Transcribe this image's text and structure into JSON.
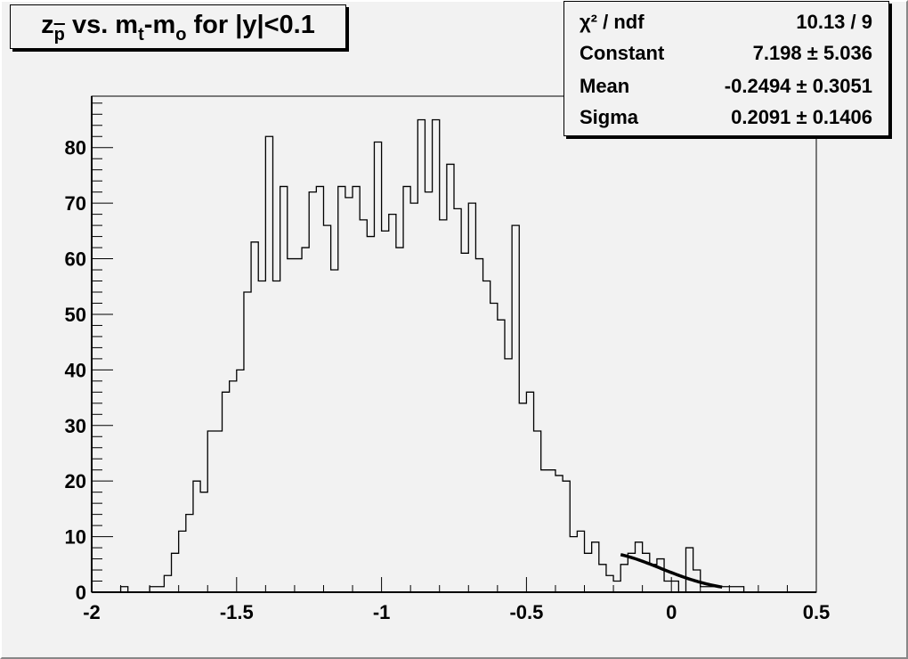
{
  "title_parts": [
    "z",
    "p",
    "vs. m",
    "t",
    "-m",
    "o",
    "for |y|<0.1"
  ],
  "stats": [
    {
      "label": "χ² / ndf",
      "value": "10.13 / 9"
    },
    {
      "label": "Constant",
      "value": "7.198 ± 5.036"
    },
    {
      "label": "Mean",
      "value": "-0.2494 ± 0.3051"
    },
    {
      "label": "Sigma",
      "value": "0.2091 ± 0.1406"
    }
  ],
  "chart_data": {
    "type": "bar",
    "style": "step histogram",
    "xlim": [
      -2,
      0.5
    ],
    "ylim": [
      0,
      89.25
    ],
    "bin_width": 0.025,
    "x_ticks": [
      "-2",
      "-1.5",
      "-1",
      "-0.5",
      "0",
      "0.5"
    ],
    "y_ticks": [
      "0",
      "10",
      "20",
      "30",
      "40",
      "50",
      "60",
      "70",
      "80"
    ],
    "values": [
      0,
      0,
      0,
      0,
      1,
      0,
      0,
      0,
      1,
      1,
      3,
      7,
      11,
      14,
      20,
      18,
      29,
      29,
      36,
      38,
      40,
      54,
      63,
      56,
      82,
      56,
      73,
      60,
      60,
      62,
      72,
      73,
      66,
      58,
      73,
      71,
      73,
      67,
      64,
      81,
      65,
      68,
      62,
      73,
      70,
      85,
      72,
      85,
      67,
      77,
      69,
      61,
      70,
      60,
      56,
      52,
      49,
      42,
      66,
      34,
      36,
      29,
      22,
      22,
      21,
      20,
      10,
      11,
      7,
      9,
      5,
      3,
      2,
      5,
      7,
      9,
      7,
      5,
      6,
      2,
      2,
      0,
      8,
      4,
      1,
      1,
      1,
      1,
      1,
      1,
      0,
      0,
      0,
      0,
      0,
      0,
      0,
      0,
      0,
      0
    ],
    "fit": {
      "function": "gaus",
      "constant": 7.198,
      "mean": -0.2494,
      "sigma": 0.2091,
      "range": [
        -0.175,
        0.175
      ]
    },
    "grid": false,
    "colors": {
      "line": "#000000",
      "background": "#f2f2f2"
    }
  }
}
